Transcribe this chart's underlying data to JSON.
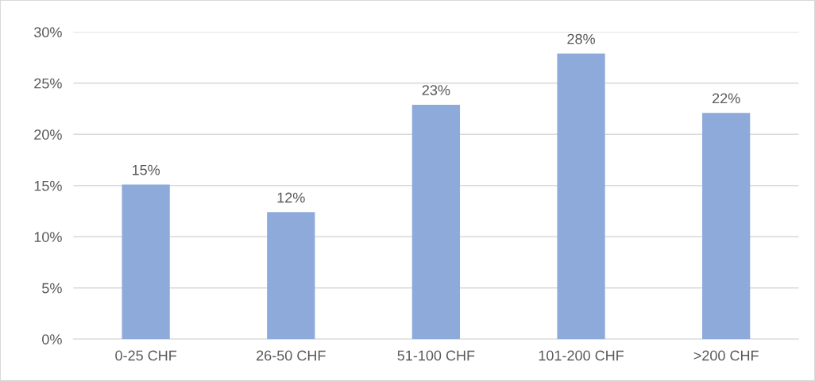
{
  "chart_data": {
    "type": "bar",
    "categories": [
      "0-25 CHF",
      "26-50 CHF",
      "51-100 CHF",
      "101-200 CHF",
      ">200 CHF"
    ],
    "values": [
      15.1,
      12.4,
      22.9,
      27.9,
      22.1
    ],
    "value_labels": [
      "15%",
      "12%",
      "23%",
      "28%",
      "22%"
    ],
    "color": "#8eaadb",
    "ylim": [
      0,
      30
    ],
    "yticks": [
      {
        "value": 0,
        "label": "0%"
      },
      {
        "value": 5,
        "label": "5%"
      },
      {
        "value": 10,
        "label": "10%"
      },
      {
        "value": 15,
        "label": "15%"
      },
      {
        "value": 20,
        "label": "20%"
      },
      {
        "value": 25,
        "label": "25%"
      },
      {
        "value": 30,
        "label": "30%"
      }
    ],
    "grid": "y",
    "legend": false
  }
}
